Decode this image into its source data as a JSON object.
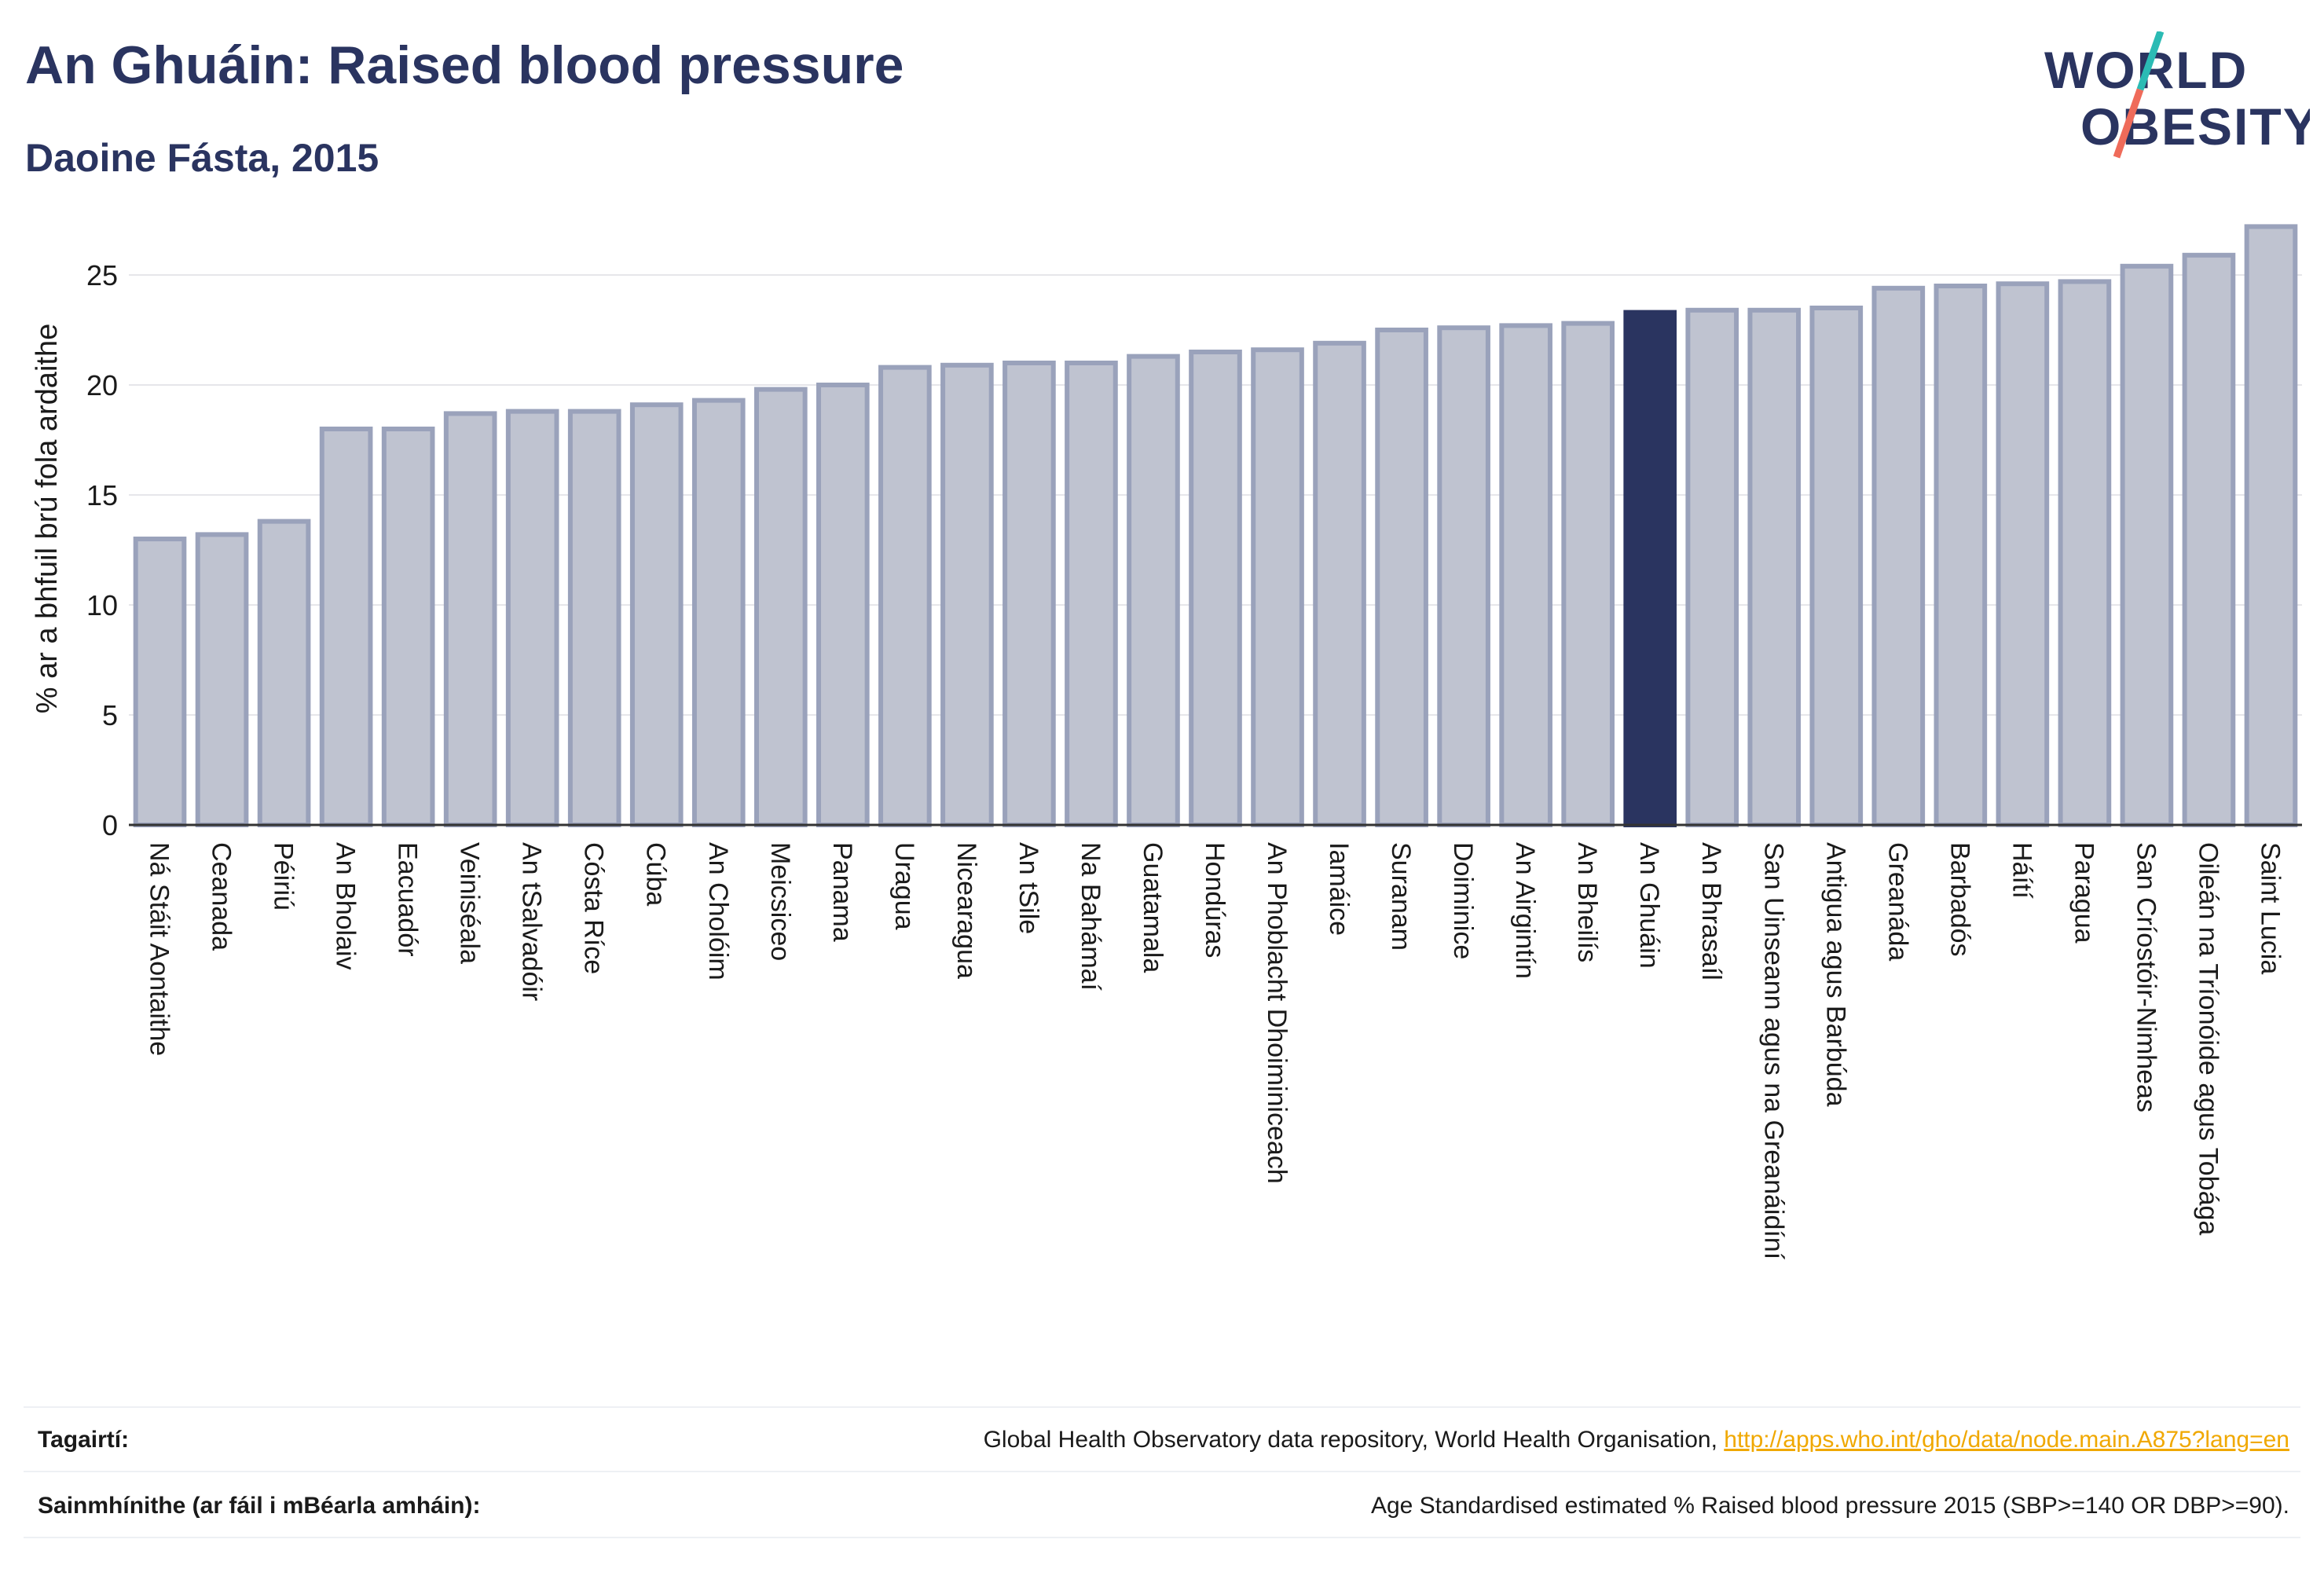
{
  "title": "An Ghuáin: Raised blood pressure",
  "subtitle": "Daoine Fásta, 2015",
  "logo": {
    "line1": "WORLD",
    "line2": "OBESITY"
  },
  "colors": {
    "bar_fill": "#bfc3d0",
    "bar_stroke": "#9aa2bb",
    "highlight": "#2a3460",
    "grid": "#e6e6ea",
    "axis": "#333333",
    "title": "#2a3460",
    "link": "#f0a800"
  },
  "chart_data": {
    "type": "bar",
    "ylabel": "% ar a bhfuil brú fola ardaithe",
    "xlabel": "",
    "ylim": [
      0,
      27.5
    ],
    "yticks": [
      0,
      5,
      10,
      15,
      20,
      25
    ],
    "grid": true,
    "highlight_category": "An Ghuáin",
    "categories": [
      "Ná Stáit Aontaithe",
      "Ceanada",
      "Péiriú",
      "An Bholaiv",
      "Eacuadór",
      "Veiniséala",
      "An tSalvadóir",
      "Cósta Ríce",
      "Cúba",
      "An Cholóim",
      "Meicsiceo",
      "Panama",
      "Uragua",
      "Nicearagua",
      "An tSile",
      "Na Bahámaí",
      "Guatamala",
      "Hondúras",
      "An Phoblacht Dhoiminiceach",
      "Iamáice",
      "Suranam",
      "Doiminice",
      "An Airgintín",
      "An Bheilís",
      "An Ghuáin",
      "An Bhrasaíl",
      "San Uinseann agus na Greanáidíní",
      "Antigua agus Barbúda",
      "Greanáda",
      "Barbadós",
      "Háítí",
      "Paragua",
      "San Críostóir-Nimheas",
      "Oileán na Tríonóide agus Tobága",
      "Saint Lucia"
    ],
    "values": [
      13.0,
      13.2,
      13.8,
      18.0,
      18.0,
      18.7,
      18.8,
      18.8,
      19.1,
      19.3,
      19.8,
      20.0,
      20.8,
      20.9,
      21.0,
      21.0,
      21.3,
      21.5,
      21.6,
      21.9,
      22.5,
      22.6,
      22.7,
      22.8,
      23.3,
      23.4,
      23.4,
      23.5,
      24.4,
      24.5,
      24.6,
      24.7,
      25.4,
      25.9,
      27.2
    ]
  },
  "footer": {
    "references_label": "Tagairtí:",
    "references_text": "Global Health Observatory data repository, World Health Organisation, ",
    "references_link": "http://apps.who.int/gho/data/node.main.A875?lang=en",
    "definitions_label": "Sainmhínithe (ar fáil i mBéarla amháin):",
    "definitions_text": "Age Standardised estimated % Raised blood pressure 2015 (SBP>=140 OR DBP>=90)."
  }
}
